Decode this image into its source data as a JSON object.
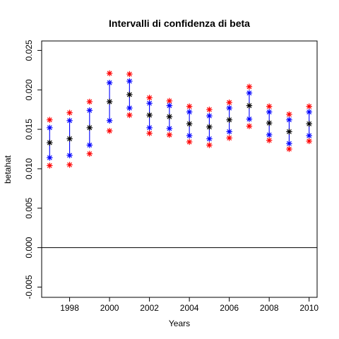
{
  "chart_data": {
    "type": "scatter",
    "title": "Intervalli di confidenza di beta",
    "xlabel": "Years",
    "ylabel": "betahat",
    "xlim": [
      1996.6,
      2010.4
    ],
    "ylim": [
      -0.0063,
      0.0262
    ],
    "x_ticks": [
      1998,
      2000,
      2002,
      2004,
      2006,
      2008,
      2010
    ],
    "y_ticks": [
      -0.005,
      0.0,
      0.005,
      0.01,
      0.015,
      0.02,
      0.025
    ],
    "y_tick_labels": [
      "-0.005",
      "0.000",
      "0.005",
      "0.010",
      "0.015",
      "0.020",
      "0.025"
    ],
    "reference_line_y": 0,
    "colors": {
      "estimate": "#000000",
      "inner_interval": "#0000ff",
      "outer_interval": "#ff0000",
      "connector": "#0000ff"
    },
    "x": [
      1997,
      1998,
      1999,
      2000,
      2001,
      2002,
      2003,
      2004,
      2005,
      2006,
      2007,
      2008,
      2009,
      2010
    ],
    "series": [
      {
        "role": "outer_upper",
        "values": [
          0.0162,
          0.0171,
          0.0185,
          0.0221,
          0.022,
          0.019,
          0.0186,
          0.0179,
          0.0175,
          0.0184,
          0.0204,
          0.0179,
          0.0169,
          0.0179
        ]
      },
      {
        "role": "inner_upper",
        "values": [
          0.0152,
          0.0161,
          0.0174,
          0.0209,
          0.0211,
          0.0183,
          0.018,
          0.0172,
          0.0167,
          0.0177,
          0.0196,
          0.0172,
          0.0162,
          0.0172
        ]
      },
      {
        "role": "estimate",
        "values": [
          0.0133,
          0.0138,
          0.0152,
          0.0185,
          0.0194,
          0.0168,
          0.0166,
          0.0157,
          0.0153,
          0.0162,
          0.018,
          0.0158,
          0.0147,
          0.0157
        ]
      },
      {
        "role": "inner_lower",
        "values": [
          0.0114,
          0.0117,
          0.013,
          0.0161,
          0.0177,
          0.0152,
          0.0151,
          0.0142,
          0.0138,
          0.0147,
          0.0163,
          0.0143,
          0.0132,
          0.0142
        ]
      },
      {
        "role": "outer_lower",
        "values": [
          0.0104,
          0.0105,
          0.0119,
          0.0148,
          0.0168,
          0.0145,
          0.0143,
          0.0134,
          0.013,
          0.0139,
          0.0154,
          0.0136,
          0.0125,
          0.0135
        ]
      }
    ]
  }
}
